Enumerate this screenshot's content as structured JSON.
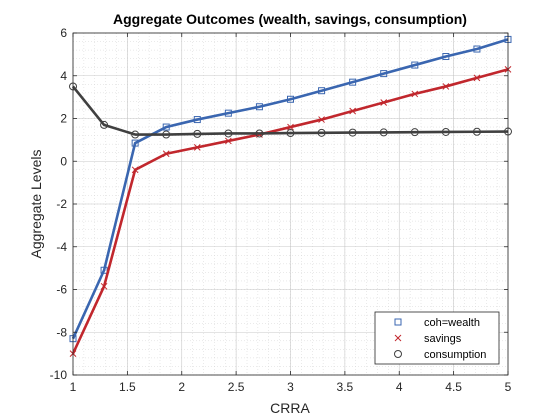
{
  "chart_data": {
    "type": "line",
    "title": "Aggregate Outcomes (wealth, savings, consumption)",
    "xlabel": "CRRA",
    "ylabel": "Aggregate Levels",
    "xlim": [
      1,
      5
    ],
    "ylim": [
      -10,
      6
    ],
    "xticks": [
      1,
      1.5,
      2,
      2.5,
      3,
      3.5,
      4,
      4.5,
      5
    ],
    "xtick_labels": [
      "1",
      "1.5",
      "2",
      "2.5",
      "3",
      "3.5",
      "4",
      "4.5",
      "5"
    ],
    "yticks": [
      -10,
      -8,
      -6,
      -4,
      -2,
      0,
      2,
      4,
      6
    ],
    "ytick_labels": [
      "-10",
      "-8",
      "-6",
      "-4",
      "-2",
      "0",
      "2",
      "4",
      "6"
    ],
    "grid": true,
    "minor_grid": true,
    "legend_position": "bottom-right",
    "x": [
      1,
      1.2857,
      1.5714,
      1.8571,
      2.1429,
      2.4286,
      2.7143,
      3,
      3.2857,
      3.5714,
      3.8571,
      4.1429,
      4.4286,
      4.7143,
      5
    ],
    "series": [
      {
        "name": "coh=wealth",
        "color": "#3a66b0",
        "marker": "square",
        "values": [
          -8.3,
          -5.1,
          0.85,
          1.6,
          1.95,
          2.25,
          2.55,
          2.9,
          3.3,
          3.7,
          4.1,
          4.5,
          4.9,
          5.25,
          5.7
        ]
      },
      {
        "name": "savings",
        "color": "#c1272d",
        "marker": "x",
        "values": [
          -9.0,
          -5.85,
          -0.4,
          0.35,
          0.65,
          0.95,
          1.25,
          1.6,
          1.95,
          2.35,
          2.75,
          3.15,
          3.5,
          3.9,
          4.3
        ]
      },
      {
        "name": "consumption",
        "color": "#404040",
        "marker": "circle",
        "values": [
          3.5,
          1.7,
          1.25,
          1.25,
          1.28,
          1.3,
          1.3,
          1.32,
          1.33,
          1.34,
          1.35,
          1.36,
          1.37,
          1.38,
          1.39
        ]
      }
    ]
  }
}
